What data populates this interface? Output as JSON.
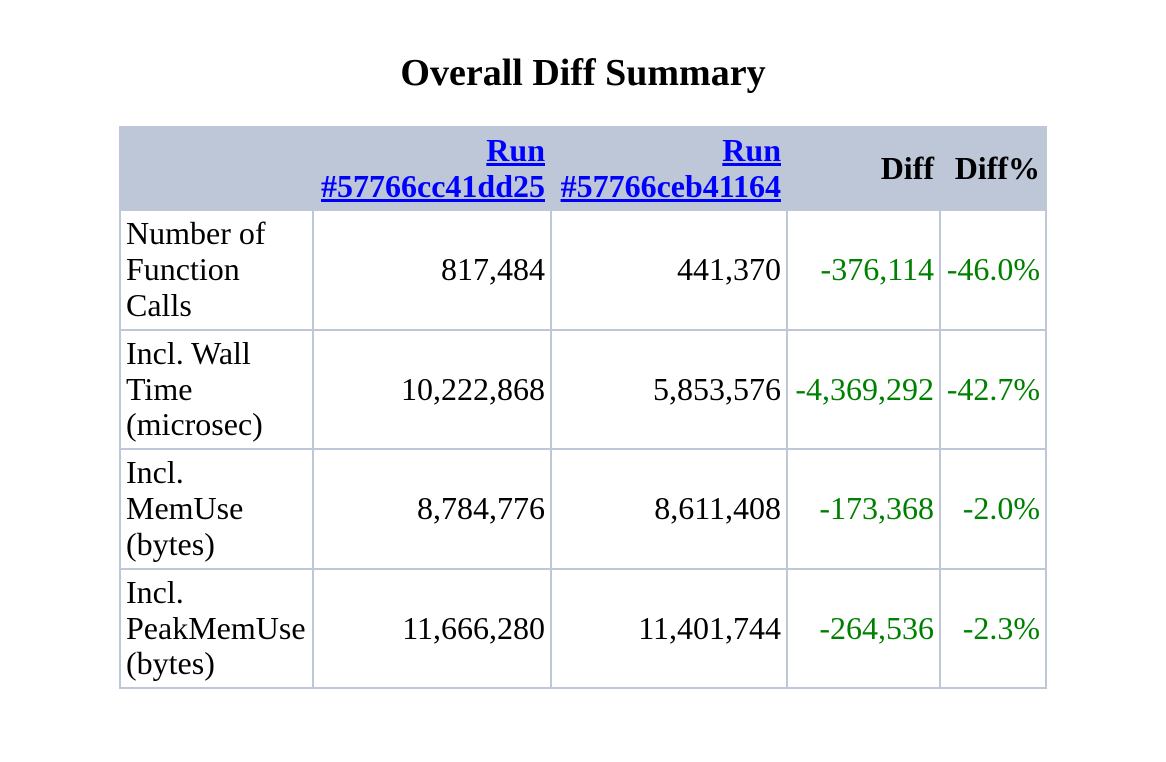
{
  "page": {
    "title": "Overall Diff Summary"
  },
  "colors": {
    "page_bg": "#ffffff",
    "header_bg": "#bdc7d8",
    "table_border": "#bdc7d8",
    "link_blue": "#0000ff",
    "diff_decrease_green": "#008000",
    "text_black": "#000000"
  },
  "table": {
    "headers": {
      "metric": "",
      "run1": "Run #57766cc41dd25",
      "run2": "Run #57766ceb41164",
      "diff": "Diff",
      "diff_pct": "Diff%"
    },
    "rows": [
      {
        "label": "Number of Function Calls",
        "run1": "817,484",
        "run2": "441,370",
        "diff": "-376,114",
        "diff_pct": "-46.0%"
      },
      {
        "label": "Incl. Wall Time (microsec)",
        "run1": "10,222,868",
        "run2": "5,853,576",
        "diff": "-4,369,292",
        "diff_pct": "-42.7%"
      },
      {
        "label": "Incl. MemUse (bytes)",
        "run1": "8,784,776",
        "run2": "8,611,408",
        "diff": "-173,368",
        "diff_pct": "-2.0%"
      },
      {
        "label": "Incl. PeakMemUse (bytes)",
        "run1": "11,666,280",
        "run2": "11,401,744",
        "diff": "-264,536",
        "diff_pct": "-2.3%"
      }
    ]
  }
}
